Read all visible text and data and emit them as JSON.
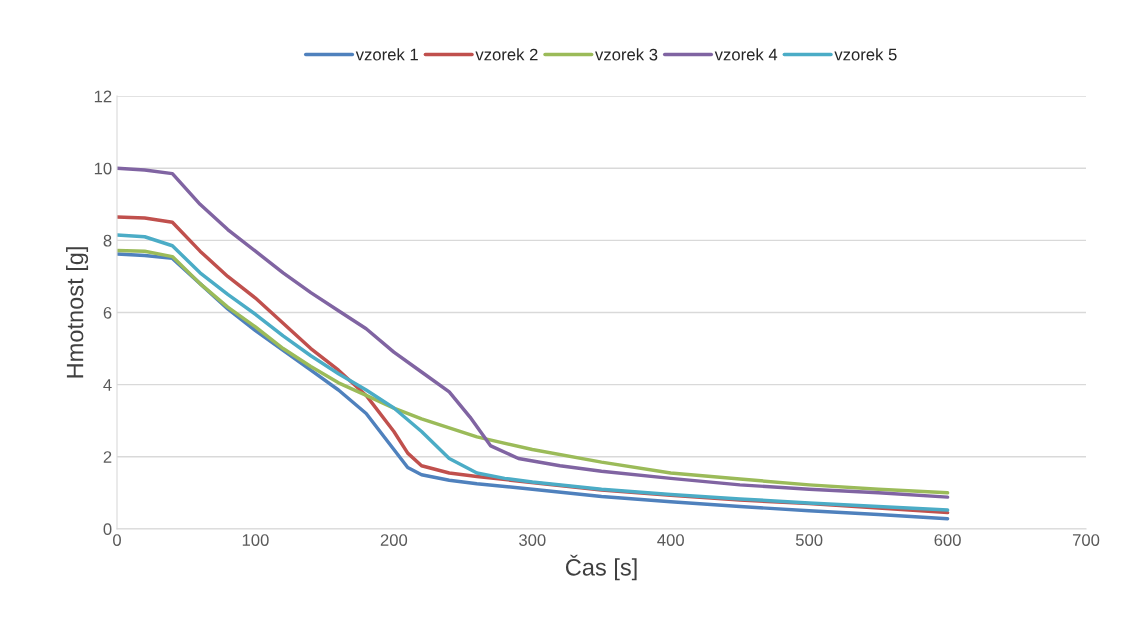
{
  "chart_data": {
    "type": "line",
    "xlabel": "Čas [s]",
    "ylabel": "Hmotnost [g]",
    "xlim": [
      0,
      700
    ],
    "xticks": [
      0,
      100,
      200,
      300,
      400,
      500,
      600,
      700
    ],
    "ylim": [
      0,
      12
    ],
    "yticks": [
      0,
      2,
      4,
      6,
      8,
      10,
      12
    ],
    "grid": "y",
    "legend": "top",
    "marker": "none",
    "line_style": "solid",
    "series": [
      {
        "name": "vzorek 1",
        "color": "#4f81bd",
        "x": [
          0,
          20,
          40,
          60,
          80,
          100,
          120,
          140,
          160,
          180,
          200,
          210,
          220,
          240,
          260,
          300,
          350,
          400,
          450,
          500,
          550,
          600
        ],
        "values": [
          7.62,
          7.58,
          7.5,
          6.8,
          6.1,
          5.5,
          4.95,
          4.4,
          3.85,
          3.2,
          2.2,
          1.7,
          1.5,
          1.35,
          1.25,
          1.1,
          0.9,
          0.75,
          0.62,
          0.5,
          0.4,
          0.28
        ]
      },
      {
        "name": "vzorek 2",
        "color": "#c0504d",
        "x": [
          0,
          20,
          40,
          60,
          80,
          100,
          120,
          140,
          160,
          180,
          200,
          210,
          220,
          240,
          260,
          350,
          400,
          450,
          500,
          550,
          600
        ],
        "values": [
          8.65,
          8.62,
          8.5,
          7.7,
          7.0,
          6.4,
          5.7,
          5.0,
          4.4,
          3.7,
          2.7,
          2.1,
          1.75,
          1.55,
          1.45,
          1.08,
          0.93,
          0.8,
          0.7,
          0.58,
          0.45
        ]
      },
      {
        "name": "vzorek 3",
        "color": "#9bbb59",
        "x": [
          0,
          20,
          40,
          60,
          80,
          100,
          120,
          140,
          160,
          180,
          200,
          220,
          240,
          260,
          300,
          350,
          400,
          450,
          500,
          550,
          600
        ],
        "values": [
          7.72,
          7.7,
          7.55,
          6.8,
          6.15,
          5.6,
          5.0,
          4.5,
          4.05,
          3.7,
          3.35,
          3.05,
          2.8,
          2.55,
          2.2,
          1.85,
          1.55,
          1.38,
          1.22,
          1.1,
          1.0
        ]
      },
      {
        "name": "vzorek 4",
        "color": "#8064a2",
        "x": [
          0,
          20,
          40,
          60,
          80,
          100,
          120,
          140,
          160,
          180,
          200,
          220,
          240,
          255,
          270,
          290,
          320,
          350,
          400,
          450,
          500,
          550,
          600
        ],
        "values": [
          10.0,
          9.95,
          9.85,
          9.0,
          8.3,
          7.7,
          7.1,
          6.55,
          6.05,
          5.55,
          4.9,
          4.35,
          3.8,
          3.1,
          2.3,
          1.95,
          1.75,
          1.6,
          1.4,
          1.22,
          1.1,
          1.0,
          0.88
        ]
      },
      {
        "name": "vzorek 5",
        "color": "#4bacc6",
        "x": [
          0,
          20,
          40,
          60,
          80,
          100,
          120,
          140,
          160,
          180,
          200,
          220,
          240,
          260,
          280,
          300,
          350,
          400,
          450,
          500,
          550,
          600
        ],
        "values": [
          8.15,
          8.1,
          7.85,
          7.1,
          6.5,
          5.95,
          5.35,
          4.8,
          4.3,
          3.85,
          3.35,
          2.7,
          1.95,
          1.55,
          1.4,
          1.3,
          1.1,
          0.95,
          0.83,
          0.72,
          0.62,
          0.52
        ]
      }
    ]
  }
}
